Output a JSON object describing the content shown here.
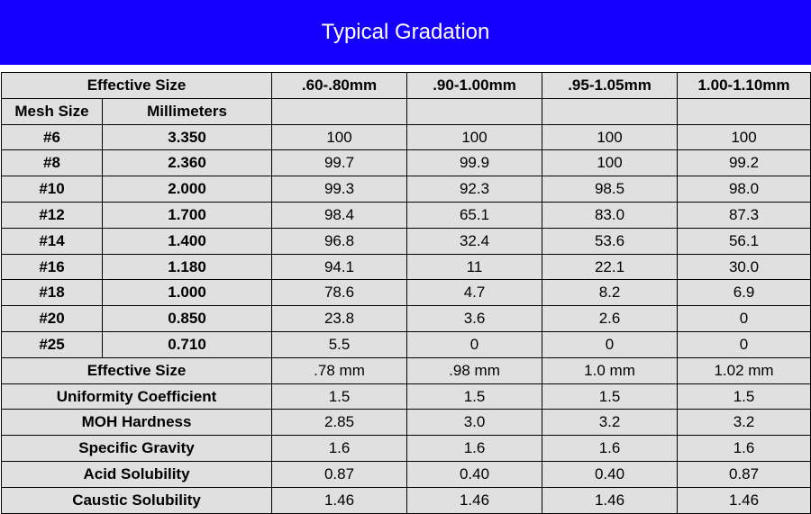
{
  "title": {
    "text": "Typical Gradation",
    "bg_color": "#1500ff",
    "text_color": "#ffffff",
    "fontsize": 24
  },
  "table": {
    "cell_bg": "#e0e0e0",
    "border_color": "#000000",
    "fontsize": 17,
    "header": {
      "effective_size_label": "Effective Size",
      "cols": [
        ".60-.80mm",
        ".90-1.00mm",
        ".95-1.05mm",
        "1.00-1.10mm"
      ]
    },
    "subheader": {
      "mesh_size": "Mesh Size",
      "millimeters": "Millimeters"
    },
    "mesh_rows": [
      {
        "mesh": "#6",
        "mm": "3.350",
        "v": [
          "100",
          "100",
          "100",
          "100"
        ]
      },
      {
        "mesh": "#8",
        "mm": "2.360",
        "v": [
          "99.7",
          "99.9",
          "100",
          "99.2"
        ]
      },
      {
        "mesh": "#10",
        "mm": "2.000",
        "v": [
          "99.3",
          "92.3",
          "98.5",
          "98.0"
        ]
      },
      {
        "mesh": "#12",
        "mm": "1.700",
        "v": [
          "98.4",
          "65.1",
          "83.0",
          "87.3"
        ]
      },
      {
        "mesh": "#14",
        "mm": "1.400",
        "v": [
          "96.8",
          "32.4",
          "53.6",
          "56.1"
        ]
      },
      {
        "mesh": "#16",
        "mm": "1.180",
        "v": [
          "94.1",
          "11",
          "22.1",
          "30.0"
        ]
      },
      {
        "mesh": "#18",
        "mm": "1.000",
        "v": [
          "78.6",
          "4.7",
          "8.2",
          "6.9"
        ]
      },
      {
        "mesh": "#20",
        "mm": "0.850",
        "v": [
          "23.8",
          "3.6",
          "2.6",
          "0"
        ]
      },
      {
        "mesh": "#25",
        "mm": "0.710",
        "v": [
          "5.5",
          "0",
          "0",
          "0"
        ]
      }
    ],
    "summary_rows": [
      {
        "label": "Effective Size",
        "v": [
          ".78 mm",
          ".98 mm",
          "1.0 mm",
          "1.02 mm"
        ]
      },
      {
        "label": "Uniformity Coefficient",
        "v": [
          "1.5",
          "1.5",
          "1.5",
          "1.5"
        ]
      },
      {
        "label": "MOH Hardness",
        "v": [
          "2.85",
          "3.0",
          "3.2",
          "3.2"
        ]
      },
      {
        "label": "Specific Gravity",
        "v": [
          "1.6",
          "1.6",
          "1.6",
          "1.6"
        ]
      },
      {
        "label": "Acid Solubility",
        "v": [
          "0.87",
          "0.40",
          "0.40",
          "0.87"
        ]
      },
      {
        "label": "Caustic Solubility",
        "v": [
          "1.46",
          "1.46",
          "1.46",
          "1.46"
        ]
      }
    ]
  }
}
